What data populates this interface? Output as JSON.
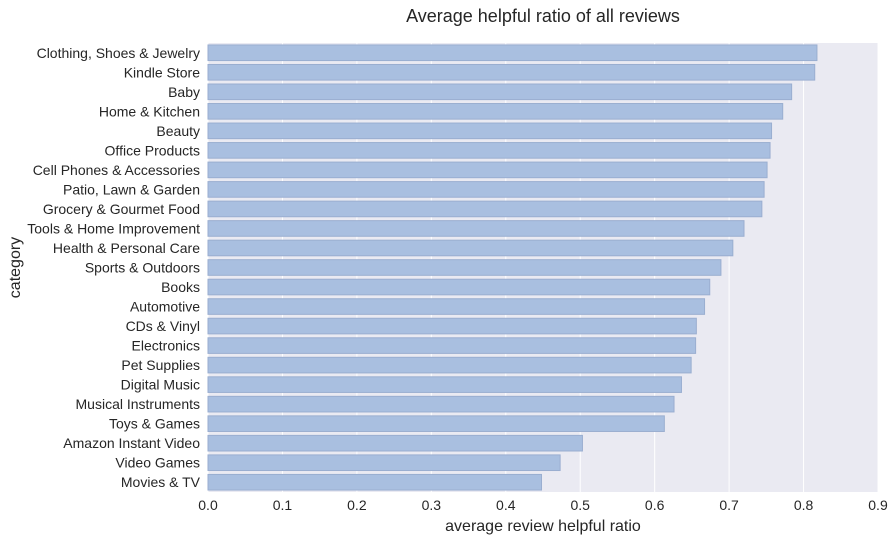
{
  "chart_data": {
    "type": "bar",
    "orientation": "horizontal",
    "title": "Average helpful ratio of all reviews",
    "xlabel": "average review helpful ratio",
    "ylabel": "category",
    "xlim": [
      0,
      0.9
    ],
    "xticks": [
      "0.0",
      "0.1",
      "0.2",
      "0.3",
      "0.4",
      "0.5",
      "0.6",
      "0.7",
      "0.8",
      "0.9"
    ],
    "grid": true,
    "categories": [
      "Clothing, Shoes & Jewelry",
      "Kindle Store",
      "Baby",
      "Home & Kitchen",
      "Beauty",
      "Office Products",
      "Cell Phones & Accessories",
      "Patio, Lawn & Garden",
      "Grocery & Gourmet Food",
      "Tools & Home Improvement",
      "Health & Personal Care",
      "Sports & Outdoors",
      "Books",
      "Automotive",
      "CDs & Vinyl",
      "Electronics",
      "Pet Supplies",
      "Digital Music",
      "Musical Instruments",
      "Toys & Games",
      "Amazon Instant Video",
      "Video Games",
      "Movies & TV"
    ],
    "values": [
      0.818,
      0.815,
      0.784,
      0.772,
      0.757,
      0.755,
      0.751,
      0.747,
      0.744,
      0.72,
      0.705,
      0.689,
      0.674,
      0.667,
      0.656,
      0.655,
      0.649,
      0.636,
      0.626,
      0.613,
      0.503,
      0.473,
      0.448
    ],
    "bar_color": "#a9bfe0",
    "bar_edge_color": "#9aaed0",
    "plot_background": "#eaeaf2",
    "grid_color": "#ffffff"
  }
}
